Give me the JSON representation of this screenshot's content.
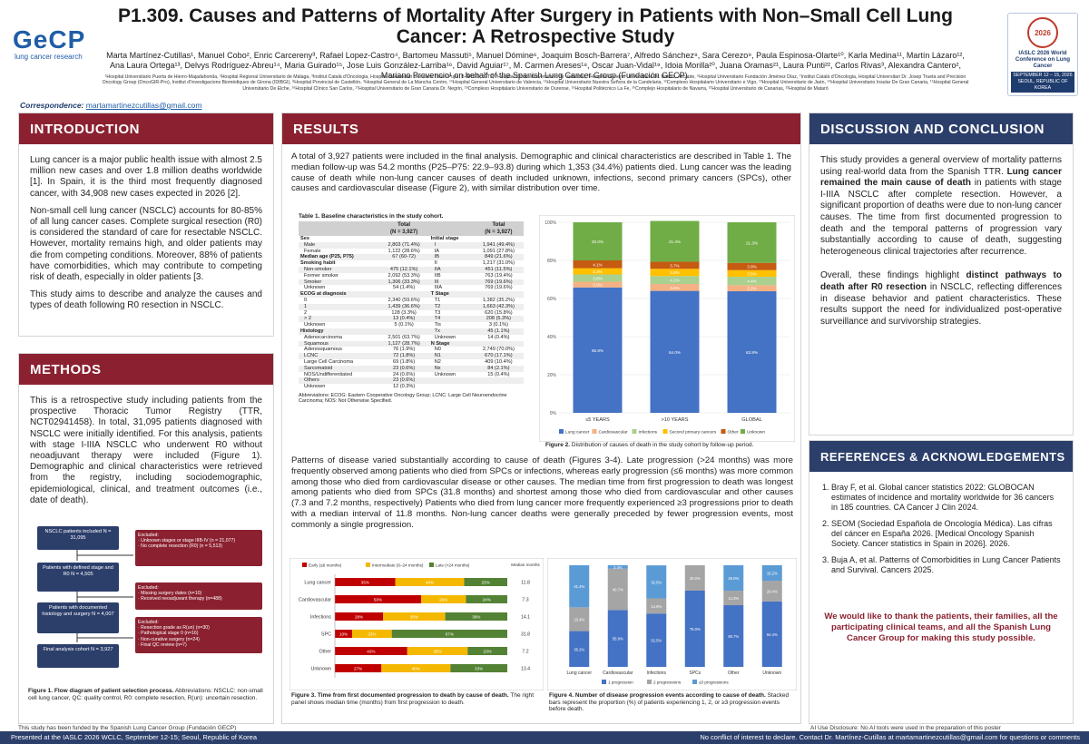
{
  "header": {
    "title": "P1.309. Causes and Patterns of Mortality After Surgery in Patients with Non–Small Cell Lung Cancer: A Retrospective Study",
    "authors": "Marta Martínez-Cutillas¹, Manuel Cobo², Enric Carcereny³, Rafael Lopez-Castro⁴, Bartomeu Massuti⁵, Manuel Dómine⁶, Joaquim Bosch-Barrera⁷, Alfredo Sánchez⁸, Sara Cerezo⁹, Paula Espinosa-Olarte¹⁰, Karla Medina¹¹, Martín Lázaro¹², Ana Laura Ortega¹³, Delvys Rodríguez-Abreu¹⁴, Maria Guirado¹⁵, Jose Luis González-Larriba¹⁶, David Aguiar¹⁷, M. Carmen Areses¹⁸, Oscar Juan-Vidal¹⁹, Idoia Morilla²⁰, Juana Oramas²¹, Laura Punti²², Carlos Rivas³, Alexandra Cantero², Mariano Provencio¹ on behalf of the Spanish Lung Cancer Group (Fundación GECP).",
    "affiliations": "¹Hospital Universitario Puerta de Hierro-Majadahonda, ²Hospital Regional Universitario de Málaga, ³Institut Català d'Oncologia, Hospital Universitari Germans Trias i Pujol, B-ARGO, IGTP, ⁴Hospital Clínico Universitario de Valladolid, ⁵Hospital General Universitario Dr. Balmis, Alicante, ⁶Hospital Universitario Fundación Jiménez Díaz, ⁷Institut Català d'Oncologia, Hospital Universitari Dr. Josep Trueta and Precision Oncology Group (OncoGIR-Pro), Institut d'Investigacions Biomèdiques de Girona (IDIBGI), ⁸Hospital Provincial de Castellón, ⁹Hospital General de La Mancha Centro, ¹⁰Hospital General Universitario de Valencia, ¹¹Hospital Universitario Nuestra Señora de la Candelaria, ¹²Complexo Hospitalario Universitario e Vigo, ¹³Hospital Universitario de Jaén, ¹⁴Hospital Universitario Insular De Gran Canaria, ¹⁵Hospital General Universitario De Elche, ¹⁶Hospital Clínico San Carlos, ¹⁷Hospital Universitario de Gran Canaria Dr. Negrín, ¹⁸Complexo Hospitalario Universitario de Ourense, ¹⁹Hospital Politécnico La Fe, ²⁰Complejo Hospitalario de Navarra, ²¹Hospital Universitario de Canarias, ²²Hospital de Mataró",
    "logo_left_main": "GeCP",
    "logo_left_sub": "lung cancer research",
    "logo_right_line1": "IASLC 2026 World Conference on Lung Cancer",
    "logo_right_line2": "SEPTEMBER 12 – 15, 2026 SEOUL, REPUBLIC OF KOREA",
    "logo_right_badge": "2026",
    "correspondence_label": "Correspondence:",
    "correspondence_email": "martamartinezcutillas@gmail.com"
  },
  "intro": {
    "heading": "INTRODUCTION",
    "p1": "Lung cancer is a major public health issue with almost 2.5 million new cases and over 1.8 million deaths worldwide [1]. In Spain, it is the third most frequently diagnosed cancer, with 34,908 new cases expected in 2026 [2].",
    "p2": "Non-small cell lung cancer (NSCLC) accounts for 80-85% of all lung cancer cases. Complete surgical resection (R0) is considered the standard of care for resectable NSCLC. However, mortality remains high, and older patients may die from competing conditions. Moreover, 88% of patients have comorbidities, which may contribute to competing risk of death, especially in older patients [3.",
    "p3": "This study aims to describe and analyze the causes and types of death following R0 resection in NSCLC."
  },
  "methods": {
    "heading": "METHODS",
    "p1": "This is a retrospective study including patients from the prospective Thoracic Tumor Registry (TTR, NCT02941458). In total, 31,095 patients diagnosed with NSCLC were initially identified. For this analysis, patients with stage I-IIIA NSCLC who underwent R0 without neoadjuvant therapy were included (Figure 1). Demographic and clinical characteristics were retrieved from the registry, including sociodemographic, epidemiological, clinical, and treatment outcomes (i.e., date of death).",
    "flow": {
      "box1": "NSCLC patients included\nN = 31,095",
      "box2": "Patients with defined stage and R0\nN = 4,505",
      "box3": "Patients with documented histology and surgery\nN = 4,007",
      "box4": "Final analysis cohort\nN = 3,927",
      "ex1": "Excluded:\n· Unknown stages or stage IIIB-IV (n = 21,077)\n· No complete resection (R0) (n = 5,513)",
      "ex2": "Excluded:\n· Missing surgery dates (n=10)\n· Received neoadjuvant therapy (n=488)",
      "ex3": "Excluded:\n· Resection grade as R(un) (n=30)\n· Pathological stage 0 (n=16)\n· Non-curative surgery (n=24)\n· Final QC review (n=7)"
    },
    "fig1_caption_bold": "Figure 1. Flow diagram of patient selection process.",
    "fig1_caption": "Abbreviations: NSCLC: non-small cell lung cancer, QC: quality control, R0: complete resection, R(un): uncertain resection."
  },
  "results": {
    "heading": "RESULTS",
    "p1": "A total of 3,927 patients were included in the final analysis. Demographic and clinical characteristics are described in Table 1. The median follow-up was 54.2 months (P25–P75: 22.9–93.8) during which 1,353 (34.4%) patients died. Lung cancer was the leading cause of death while non-lung cancer causes of death included unknown, infections, second primary cancers (SPCs), other causes and cardiovascular disease (Figure 2), with similar distribution over time.",
    "p2": "Patterns of disease varied substantially according to cause of death (Figures 3-4). Late progression (>24 months) was more frequently observed among patients who died from SPCs or infections, whereas early progression (≤6 months) was more common among those who died from cardiovascular disease or other causes. The median time from first progression to death was longest among patients who died from SPCs (31.8 months) and shortest among those who died from cardiovascular and other causes (7.3 and 7.2 months, respectively) Patients who died from lung cancer more frequently experienced ≥3 progressions prior to death with a median interval of 11.8 months. Non-lung cancer deaths were generally preceded by fewer progression events, most commonly a single progression.",
    "table1_title": "Table 1. Baseline characteristics in the study cohort.",
    "table1_head": [
      "",
      "Total\n(N = 3,927)",
      "",
      "Total\n(N = 3,927)"
    ],
    "table1_left": [
      [
        "Sex",
        "",
        true
      ],
      [
        "Male",
        "2,803 (71.4%)",
        false
      ],
      [
        "Female",
        "1,122 (28.6%)",
        false
      ],
      [
        "Median age (P25, P75)",
        "67 (60-72)",
        true
      ],
      [
        "Smoking habit",
        "",
        true
      ],
      [
        "Non-smoker",
        "475 (12.1%)",
        false
      ],
      [
        "Former smoker",
        "2,092 (53.3%)",
        false
      ],
      [
        "Smoker",
        "1,306 (33.3%)",
        false
      ],
      [
        "Unknown",
        "54 (1.4%)",
        false
      ],
      [
        "ECOG at diagnosis",
        "",
        true
      ],
      [
        "0",
        "2,340 (59.6%)",
        false
      ],
      [
        "1",
        "1,439 (36.6%)",
        false
      ],
      [
        "2",
        "128 (3.3%)",
        false
      ],
      [
        "> 2",
        "13 (0.4%)",
        false
      ],
      [
        "Unknown",
        "5 (0.1%)",
        false
      ],
      [
        "Histology",
        "",
        true
      ],
      [
        "Adenocarcinoma",
        "2,501 (63.7%)",
        false
      ],
      [
        "Squamous",
        "1,127 (28.7%)",
        false
      ],
      [
        "Adenosquamous",
        "76 (1.9%)",
        false
      ],
      [
        "LCNC",
        "72 (1.8%)",
        false
      ],
      [
        "Large Cell Carcinoma",
        "69 (1.8%)",
        false
      ],
      [
        "Sarcomatoid",
        "23 (0.6%)",
        false
      ],
      [
        "NOS/Undifferentiated",
        "24 (0.6%)",
        false
      ],
      [
        "Others",
        "23 (0.6%)",
        false
      ],
      [
        "Unknown",
        "12 (0.3%)",
        false
      ]
    ],
    "table1_right": [
      [
        "Initial stage",
        "",
        true
      ],
      [
        "I",
        "1,941 (49.4%)",
        false
      ],
      [
        "IA",
        "1,091 (27.8%)",
        false
      ],
      [
        "IB",
        "849 (21.6%)",
        false
      ],
      [
        "II",
        "1,217 (31.0%)",
        false
      ],
      [
        "IIA",
        "451 (11.5%)",
        false
      ],
      [
        "IIB",
        "763 (19.4%)",
        false
      ],
      [
        "III",
        "769 (19.6%)",
        false
      ],
      [
        "IIIA",
        "769 (19.6%)",
        false
      ],
      [
        "T Stage",
        "",
        true
      ],
      [
        "T1",
        "1,382 (35.2%)",
        false
      ],
      [
        "T2",
        "1,663 (42.3%)",
        false
      ],
      [
        "T3",
        "620 (15.8%)",
        false
      ],
      [
        "T4",
        "208 (5.3%)",
        false
      ],
      [
        "Tis",
        "3 (0.1%)",
        false
      ],
      [
        "Tx",
        "45 (1.1%)",
        false
      ],
      [
        "Unknown",
        "14 (0.4%)",
        false
      ],
      [
        "N Stage",
        "",
        true
      ],
      [
        "N0",
        "2,749 (70.0%)",
        false
      ],
      [
        "N1",
        "670 (17.1%)",
        false
      ],
      [
        "N2",
        "409 (10.4%)",
        false
      ],
      [
        "Nx",
        "84 (2.1%)",
        false
      ],
      [
        "Unknown",
        "15 (0.4%)",
        false
      ],
      [
        "",
        ""
      ],
      [
        "",
        ""
      ]
    ],
    "table1_foot": "Abbreviations: ECOG: Eastern Cooperative Oncology Group; LCNC: Large Cell Neuroendocrine Carcinoma; NOS: Not Otherwise Specified.",
    "fig2_caption_bold": "Figure 2.",
    "fig2_caption": "Distribution of causes of death in the study cohort by follow-up period.",
    "fig3_caption_bold": "Figure 3. Time from first documented progression to death by cause of death.",
    "fig3_caption": "The right panel shows median time (months) from first progression to death.",
    "fig4_caption_bold": "Figure 4. Number of disease progression events according to cause of death.",
    "fig4_caption": "Stacked bars represent the proportion (%) of patients experiencing 1, 2, or ≥3 progression events before death."
  },
  "discussion": {
    "heading": "DISCUSSION AND CONCLUSION",
    "p1_a": "This study provides a general overview of mortality patterns using real-world data from the Spanish TTR.",
    "p1_b": "Lung cancer remained the main cause of death",
    "p1_c": "in patients with stage I-IIIA NSCLC after complete resection. However, a significant proportion of deaths were due to non-lung cancer causes. The time from first documented progression to death and the temporal patterns of progression vary substantially according to cause of death, suggesting heterogeneous clinical trajectories after recurrence.",
    "p2_a": "Overall, these findings highlight",
    "p2_b": "distinct pathways to death after R0 resection",
    "p2_c": "in NSCLC, reflecting differences in disease behavior and patient characteristics. These results support the need for individualized post-operative surveillance and survivorship strategies."
  },
  "refs": {
    "heading": "REFERENCES & ACKNOWLEDGEMENTS",
    "items": [
      "Bray F, et al. Global cancer statistics 2022: GLOBOCAN estimates of incidence and mortality worldwide for 36 cancers in 185 countries. CA Cancer J Clin 2024.",
      "SEOM (Sociedad Española de Oncología Médica). Las cifras del cáncer en España 2026. [Medical Oncology Spanish Society. Cancer statistics in Spain in 2026]. 2026.",
      "Buja A, et al. Patterns of Comorbidities in Lung Cancer Patients and Survival. Cancers 2025."
    ],
    "thanks": "We would like to thank the patients, their families, all the participating clinical teams, and all the Spanish Lung Cancer Group for making this study possible."
  },
  "footer": {
    "funding": "This study has been funded by the Spanish Lung Cancer Group (Fundación GECP)",
    "ai": "AI Use Disclosure: No AI tools were used in the preparation of this poster",
    "left": "Presented at the IASLC 2026 WCLC, September 12-15; Seoul, Republic of Korea",
    "right": "No conflict of interest to declare. Contact Dr. Martínez-Cutillas at martamartinezcutillas@gmail.com for questions or comments"
  },
  "colors": {
    "lung": "#4472c4",
    "cardio": "#f4b183",
    "infect": "#a9d08e",
    "spc": "#ffc000",
    "other": "#c55a11",
    "unknown": "#70ad47",
    "early": "#c00000",
    "mid": "#f5b800",
    "late": "#548235",
    "p1": "#4472c4",
    "p2": "#a5a5a5",
    "p3": "#5b9bd5"
  },
  "chart_data": [
    {
      "type": "bar",
      "id": "fig2",
      "stacked": true,
      "categories": [
        "≤5 YEARS",
        ">10 YEARS",
        "GLOBAL"
      ],
      "series": [
        {
          "name": "Lung cancer",
          "values": [
            65.8,
            64.0,
            63.8
          ]
        },
        {
          "name": "Cardiovascular",
          "values": [
            3.0,
            3.6,
            3.2
          ]
        },
        {
          "name": "Infections",
          "values": [
            3.8,
            4.2,
            4.4
          ]
        },
        {
          "name": "Second primary cancers",
          "values": [
            3.3,
            3.8,
            3.5
          ]
        },
        {
          "name": "Other",
          "values": [
            4.1,
            3.7,
            3.8
          ]
        },
        {
          "name": "Unknown",
          "values": [
            20.0,
            21.4,
            21.3
          ]
        }
      ],
      "ylim": [
        0,
        100
      ]
    },
    {
      "type": "bar",
      "id": "fig3",
      "stacked": true,
      "horizontal": true,
      "categories": [
        "Lung cancer",
        "Cardiovascular",
        "Infections",
        "SPC",
        "Other",
        "Unknown"
      ],
      "series": [
        {
          "name": "Early (≤6 months)",
          "values": [
            35,
            50,
            28,
            10,
            42,
            27
          ]
        },
        {
          "name": "Intermediate (6–24 months)",
          "values": [
            40,
            26,
            36,
            23,
            35,
            40
          ]
        },
        {
          "name": "Late (>24 months)",
          "values": [
            25,
            24,
            36,
            67,
            23,
            33
          ]
        }
      ],
      "data_labels": [
        [
          "35%",
          "40%",
          "25%"
        ],
        [
          "50%",
          "26%",
          "24%"
        ],
        [
          "28%",
          "36%",
          "36%"
        ],
        [
          "10%",
          "23%",
          "67%"
        ],
        [
          "42%",
          "35%",
          "23%"
        ],
        [
          "27%",
          "40%",
          "33%"
        ]
      ],
      "median_header": "Median\nmonths",
      "median_months": [
        "11.8",
        "7.3",
        "14.1",
        "31.8",
        "7.2",
        "13.4"
      ]
    },
    {
      "type": "bar",
      "id": "fig4",
      "stacked": true,
      "categories": [
        "Lung cancer",
        "Cardiovascular",
        "Infections",
        "SPCs",
        "Other",
        "Unknown"
      ],
      "series": [
        {
          "name": "1 progression",
          "values": [
            35.2,
            55.9,
            52.5,
            75.0,
            60.7,
            64.4
          ]
        },
        {
          "name": "2 progressions",
          "values": [
            23.4,
            40.7,
            14.9,
            25.0,
            14.3,
            20.4
          ]
        },
        {
          "name": "≥3 progressions",
          "values": [
            41.4,
            3.4,
            32.5,
            0.0,
            25.0,
            15.2
          ]
        }
      ],
      "labels": [
        [
          "35.2%",
          "23.4%",
          "41.4%"
        ],
        [
          "55.9%",
          "40.7%",
          "3.4%"
        ],
        [
          "52.5%",
          "14.9%",
          "32.5%"
        ],
        [
          "75.0%",
          "25.0%",
          ""
        ],
        [
          "60.7%",
          "14.3%",
          "25.0%"
        ],
        [
          "64.4%",
          "20.4%",
          "15.2%"
        ]
      ],
      "ylim": [
        0,
        100
      ]
    }
  ]
}
